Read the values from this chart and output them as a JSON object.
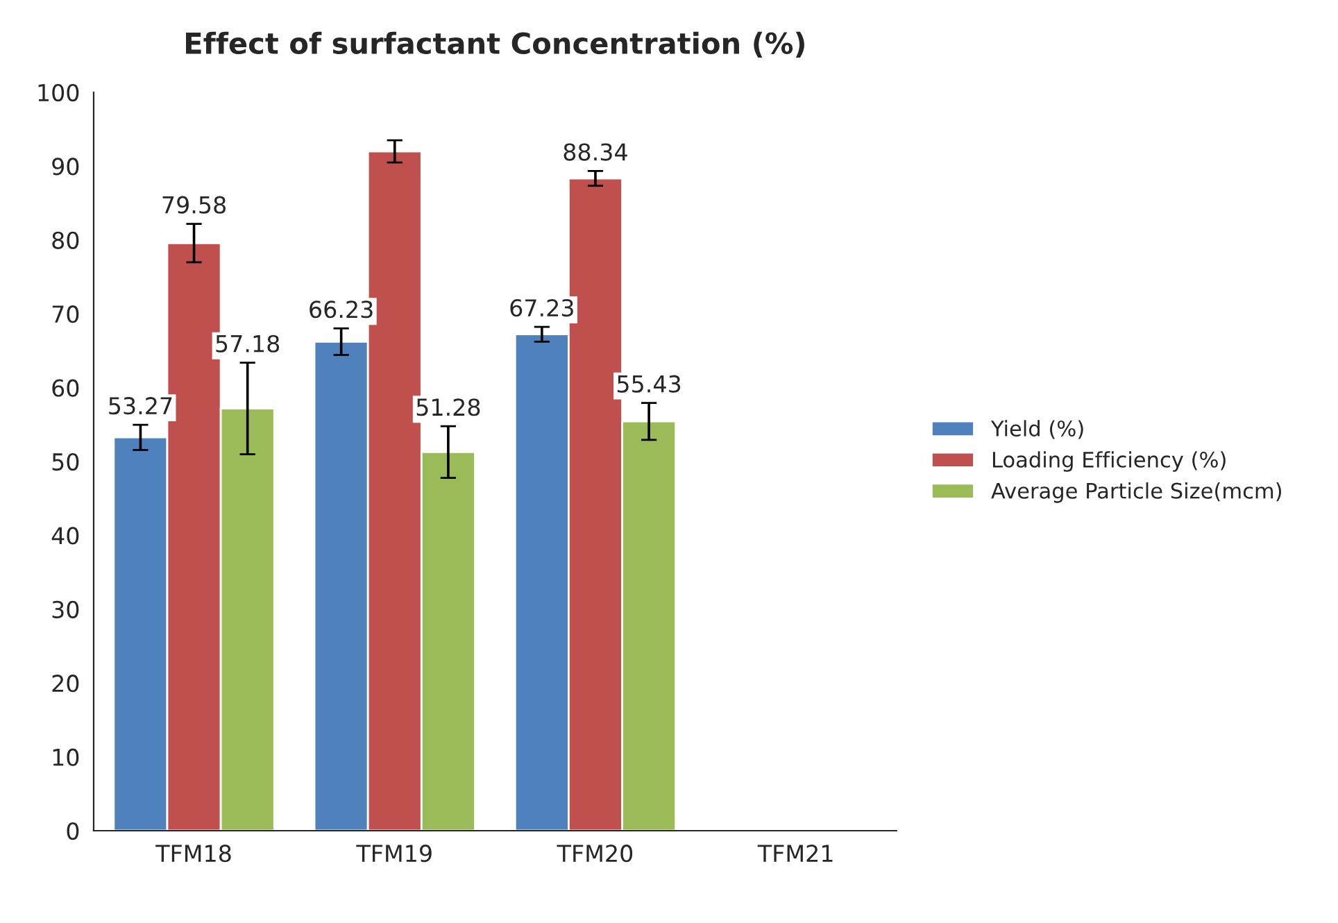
{
  "chart_data": {
    "type": "bar",
    "title": "Effect of surfactant Concentration (%)",
    "categories": [
      "TFM18",
      "TFM19",
      "TFM20",
      "TFM21"
    ],
    "series": [
      {
        "name": "Yield (%)",
        "color": "#4f81bd",
        "values": [
          53.27,
          66.23,
          67.23,
          null
        ],
        "errors": [
          1.7,
          1.8,
          1.0,
          null
        ],
        "value_labels": [
          "53.27",
          "66.23",
          "67.23",
          null
        ]
      },
      {
        "name": "Loading Efficiency (%)",
        "color": "#c0504d",
        "values": [
          79.58,
          92,
          88.34,
          null
        ],
        "errors": [
          2.6,
          1.5,
          1.0,
          null
        ],
        "value_labels": [
          "79.58",
          null,
          "88.34",
          null
        ]
      },
      {
        "name": "Average Particle Size(mcm)",
        "color": "#9bbb59",
        "values": [
          57.18,
          51.28,
          55.43,
          null
        ],
        "errors": [
          6.2,
          3.5,
          2.5,
          null
        ],
        "value_labels": [
          "57.18",
          "51.28",
          "55.43",
          null
        ]
      }
    ],
    "ylim": [
      0,
      100
    ],
    "yticks": [
      0,
      10,
      20,
      30,
      40,
      50,
      60,
      70,
      80,
      90,
      100
    ],
    "grid": false,
    "legend": "right"
  }
}
